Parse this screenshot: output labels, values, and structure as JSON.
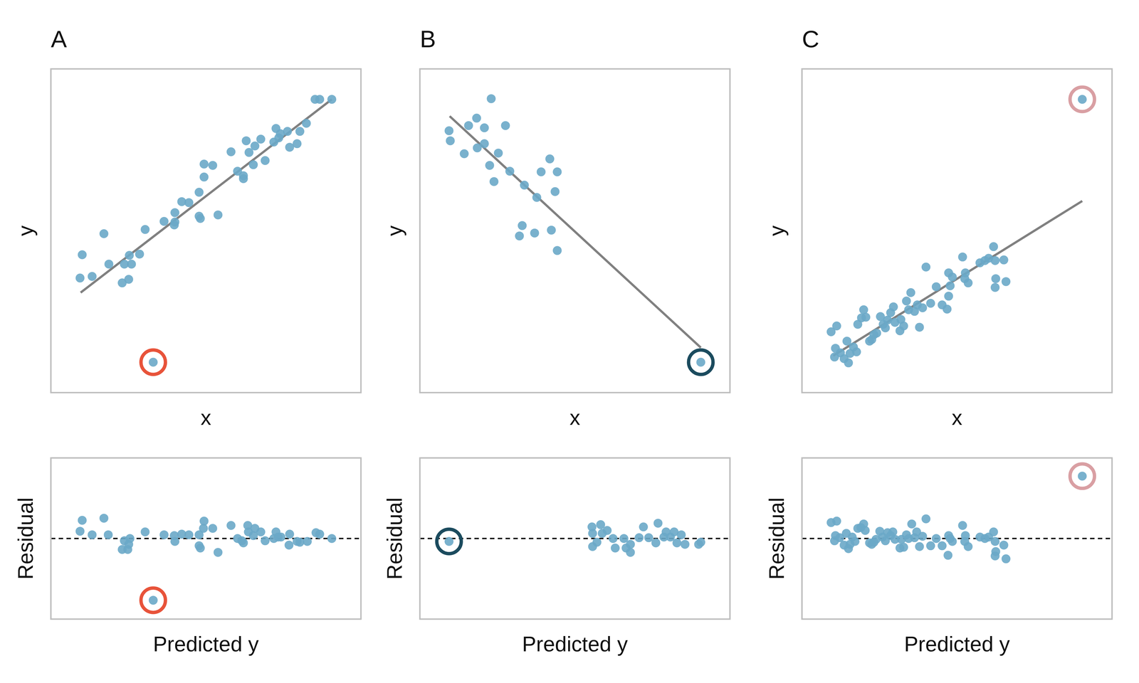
{
  "chart_data": [
    {
      "type": "scatter",
      "title": "A",
      "x_label": "x",
      "y_label": "y",
      "xlim": [
        0,
        100
      ],
      "ylim": [
        0,
        100
      ],
      "tick_labels": false,
      "series": [
        {
          "type": "line",
          "color": "#808080",
          "x": [
            9.6,
            90.6
          ],
          "values": [
            30.9,
            90.6
          ]
        },
        {
          "type": "scatter",
          "color": "#6aa9c8",
          "x": [
            9.4,
            10.1,
            13.3,
            17.1,
            18.7,
            23.0,
            23.7,
            25.1,
            26.0,
            25.3,
            28.6,
            30.4,
            36.5,
            39.8,
            40.0,
            40.0,
            42.2,
            44.5,
            47.8,
            47.8,
            48.2,
            49.4,
            49.4,
            52.2,
            53.9,
            58.1,
            60.2,
            62.1,
            62.1,
            63.0,
            63.9,
            65.3,
            65.8,
            67.7,
            69.1,
            71.9,
            72.6,
            73.5,
            74.0,
            76.3,
            77.0,
            79.4,
            80.3,
            82.4,
            85.2,
            86.7,
            90.6
          ],
          "values": [
            35.4,
            42.6,
            35.9,
            49.1,
            39.7,
            33.9,
            39.7,
            35.0,
            39.7,
            42.4,
            42.8,
            50.4,
            52.9,
            51.8,
            55.6,
            52.7,
            59.0,
            58.7,
            61.9,
            54.5,
            53.8,
            66.6,
            70.6,
            70.2,
            54.9,
            74.4,
            68.4,
            66.1,
            67.0,
            77.8,
            74.2,
            70.4,
            76.2,
            78.3,
            71.7,
            77.4,
            81.6,
            78.7,
            80.0,
            80.7,
            75.8,
            76.9,
            80.7,
            83.2,
            90.6,
            90.6,
            90.6
          ]
        },
        {
          "type": "scatter",
          "marker": "ring",
          "color": "#e8533a",
          "x": [
            33.0
          ],
          "values": [
            9.4
          ]
        }
      ]
    },
    {
      "type": "scatter",
      "title": "B",
      "x_label": "x",
      "y_label": "y",
      "xlim": [
        0,
        100
      ],
      "ylim": [
        0,
        100
      ],
      "tick_labels": false,
      "series": [
        {
          "type": "line",
          "color": "#808080",
          "x": [
            9.6,
            90.6
          ],
          "values": [
            85.4,
            13.9
          ]
        },
        {
          "type": "scatter",
          "color": "#6aa9c8",
          "x": [
            9.4,
            9.8,
            14.3,
            15.7,
            18.3,
            18.5,
            20.8,
            20.8,
            23.0,
            22.5,
            23.9,
            25.3,
            27.6,
            29.0,
            33.7,
            37.7,
            39.1,
            41.9,
            44.3,
            43.6,
            33.0,
            32.1,
            37.0,
            42.4,
            44.3
          ],
          "values": [
            80.9,
            77.8,
            73.8,
            82.5,
            84.8,
            75.6,
            81.8,
            76.9,
            90.8,
            70.2,
            65.2,
            74.0,
            82.5,
            68.4,
            64.1,
            60.3,
            68.2,
            72.2,
            68.2,
            62.1,
            51.6,
            48.4,
            49.3,
            50.2,
            43.9
          ]
        },
        {
          "type": "scatter",
          "marker": "ring",
          "color": "#1b4b5e",
          "x": [
            90.6
          ],
          "values": [
            9.4
          ]
        }
      ]
    },
    {
      "type": "scatter",
      "title": "C",
      "x_label": "x",
      "y_label": "y",
      "xlim": [
        0,
        100
      ],
      "ylim": [
        0,
        100
      ],
      "tick_labels": false,
      "series": [
        {
          "type": "line",
          "color": "#808080",
          "x": [
            10.1,
            90.4
          ],
          "values": [
            11.4,
            59.2
          ]
        },
        {
          "type": "scatter",
          "color": "#6aa9c8",
          "x": [
            9.4,
            11.2,
            10.5,
            10.8,
            12.4,
            13.6,
            14.5,
            15.0,
            15.5,
            16.6,
            17.6,
            18.0,
            19.2,
            19.9,
            20.6,
            21.8,
            22.5,
            23.2,
            24.1,
            25.3,
            26.2,
            26.9,
            27.6,
            28.6,
            29.5,
            30.0,
            31.6,
            31.9,
            32.8,
            33.7,
            34.4,
            35.1,
            36.3,
            37.2,
            37.9,
            38.9,
            40.0,
            41.5,
            43.3,
            45.2,
            46.8,
            47.3,
            47.8,
            48.5,
            47.3,
            51.8,
            52.5,
            53.6,
            52.7,
            57.4,
            59.0,
            60.2,
            61.8,
            62.3,
            65.1,
            62.5,
            62.3,
            65.8
          ],
          "values": [
            18.8,
            20.6,
            11.0,
            13.7,
            12.3,
            10.5,
            15.9,
            9.2,
            12.1,
            14.1,
            12.6,
            21.1,
            23.1,
            25.6,
            23.3,
            15.9,
            16.4,
            17.9,
            18.4,
            23.5,
            21.1,
            20.0,
            22.4,
            24.7,
            26.5,
            21.7,
            19.1,
            22.6,
            20.6,
            28.3,
            25.6,
            30.9,
            25.1,
            27.1,
            20.2,
            26.2,
            38.8,
            27.6,
            32.7,
            27.1,
            25.8,
            37.0,
            33.0,
            35.7,
            29.8,
            41.9,
            35.2,
            33.9,
            37.0,
            40.1,
            40.8,
            41.5,
            45.1,
            40.8,
            41.0,
            35.2,
            32.5,
            34.3
          ]
        },
        {
          "type": "scatter",
          "marker": "ring",
          "color": "#d99fa3",
          "x": [
            90.4
          ],
          "values": [
            90.6
          ]
        }
      ]
    },
    {
      "type": "scatter",
      "x_label": "Predicted y",
      "y_label": "Residual",
      "xlim": [
        0,
        100
      ],
      "ylim": [
        -50,
        50
      ],
      "hline": 0,
      "tick_labels": false,
      "series": [
        {
          "type": "scatter",
          "color": "#6aa9c8",
          "x": [
            9.4,
            10.1,
            13.3,
            17.1,
            18.5,
            23.0,
            23.7,
            24.8,
            25.5,
            25.1,
            30.4,
            36.5,
            39.8,
            40.0,
            42.2,
            44.5,
            47.8,
            47.8,
            48.2,
            49.4,
            49.2,
            52.2,
            53.9,
            58.1,
            60.2,
            62.1,
            61.6,
            63.5,
            63.7,
            65.3,
            65.8,
            67.7,
            69.1,
            71.9,
            72.6,
            73.3,
            74.2,
            76.8,
            77.0,
            79.4,
            80.3,
            82.7,
            85.5,
            86.7,
            90.6
          ],
          "values": [
            4.5,
            11.3,
            2.3,
            12.6,
            2.3,
            -6.8,
            -1.4,
            -6.8,
            0,
            -3.6,
            4.1,
            2.3,
            1.8,
            -1.8,
            2.7,
            2.3,
            2.3,
            -4.5,
            -5.9,
            10.8,
            6.3,
            6.3,
            -8.6,
            8.1,
            0,
            -2.7,
            -1.4,
            8.1,
            4.1,
            1.8,
            6.3,
            4.1,
            -1.4,
            0,
            4.1,
            0.9,
            0.9,
            -4.1,
            2.7,
            -1.8,
            -2.3,
            -1.8,
            3.6,
            2.7,
            0
          ]
        },
        {
          "type": "scatter",
          "marker": "ring",
          "color": "#e8533a",
          "x": [
            33.0
          ],
          "values": [
            -38.3
          ]
        }
      ]
    },
    {
      "type": "scatter",
      "x_label": "Predicted y",
      "y_label": "Residual",
      "xlim": [
        0,
        100
      ],
      "ylim": [
        -50,
        50
      ],
      "hline": 0,
      "tick_labels": false,
      "series": [
        {
          "type": "scatter",
          "color": "#6aa9c8",
          "x": [
            55.5,
            55.7,
            55.7,
            57.1,
            58.3,
            58.8,
            60.4,
            62.3,
            63.0,
            65.8,
            66.5,
            67.9,
            67.9,
            70.7,
            72.1,
            73.8,
            76.1,
            76.8,
            78.7,
            79.4,
            80.8,
            82.0,
            82.9,
            84.3,
            85.5,
            89.9,
            90.6
          ],
          "values": [
            7.2,
            3.2,
            -5.0,
            -2.3,
            8.6,
            3.2,
            5.0,
            0,
            -5.9,
            0,
            -5.9,
            -8.6,
            -3.6,
            0.5,
            7.2,
            0.5,
            -2.7,
            9.5,
            0.9,
            4.1,
            0.9,
            4.1,
            -2.7,
            2.3,
            -3.6,
            -3.6,
            -2.3
          ]
        },
        {
          "type": "scatter",
          "marker": "ring",
          "color": "#1b4b5e",
          "x": [
            9.4
          ],
          "values": [
            -1.8
          ]
        }
      ]
    },
    {
      "type": "scatter",
      "x_label": "Predicted y",
      "y_label": "Residual",
      "xlim": [
        0,
        100
      ],
      "ylim": [
        -50,
        50
      ],
      "hline": 0,
      "tick_labels": false,
      "series": [
        {
          "type": "scatter",
          "color": "#6aa9c8",
          "x": [
            9.4,
            11.2,
            10.5,
            10.8,
            12.2,
            13.6,
            14.3,
            15.0,
            15.5,
            16.2,
            17.1,
            18.0,
            19.0,
            19.9,
            20.4,
            21.8,
            22.5,
            23.2,
            23.9,
            25.1,
            26.0,
            26.9,
            27.6,
            28.6,
            29.3,
            30.0,
            31.6,
            32.1,
            32.8,
            33.7,
            34.4,
            35.4,
            36.3,
            37.0,
            37.9,
            38.9,
            40.0,
            41.5,
            43.3,
            45.2,
            47.1,
            47.3,
            47.8,
            48.5,
            51.8,
            52.5,
            53.6,
            52.7,
            57.4,
            59.0,
            60.2,
            61.8,
            62.3,
            65.1,
            62.5,
            62.3,
            65.8
          ],
          "values": [
            9.9,
            10.8,
            -1.4,
            1.8,
            0.5,
            -4.1,
            3.2,
            -6.3,
            -3.6,
            0.9,
            -1.8,
            6.3,
            6.8,
            9.0,
            5.0,
            -2.7,
            -3.6,
            -2.3,
            -0.5,
            4.5,
            0.9,
            -1.4,
            3.6,
            1.8,
            4.1,
            -0.5,
            -5.9,
            -0.5,
            -5.4,
            2.3,
            0,
            9.0,
            0.5,
            4.1,
            -5.0,
            1.4,
            12.2,
            -4.5,
            0,
            -4.5,
            -10.4,
            1.8,
            0,
            -1.8,
            8.1,
            -1.8,
            -5.0,
            1.8,
            0.9,
            0,
            0.9,
            4.1,
            -1.8,
            -4.1,
            -8.1,
            -10.8,
            -12.6
          ]
        },
        {
          "type": "scatter",
          "marker": "ring",
          "color": "#d99fa3",
          "x": [
            90.4
          ],
          "values": [
            38.7
          ]
        }
      ]
    }
  ]
}
